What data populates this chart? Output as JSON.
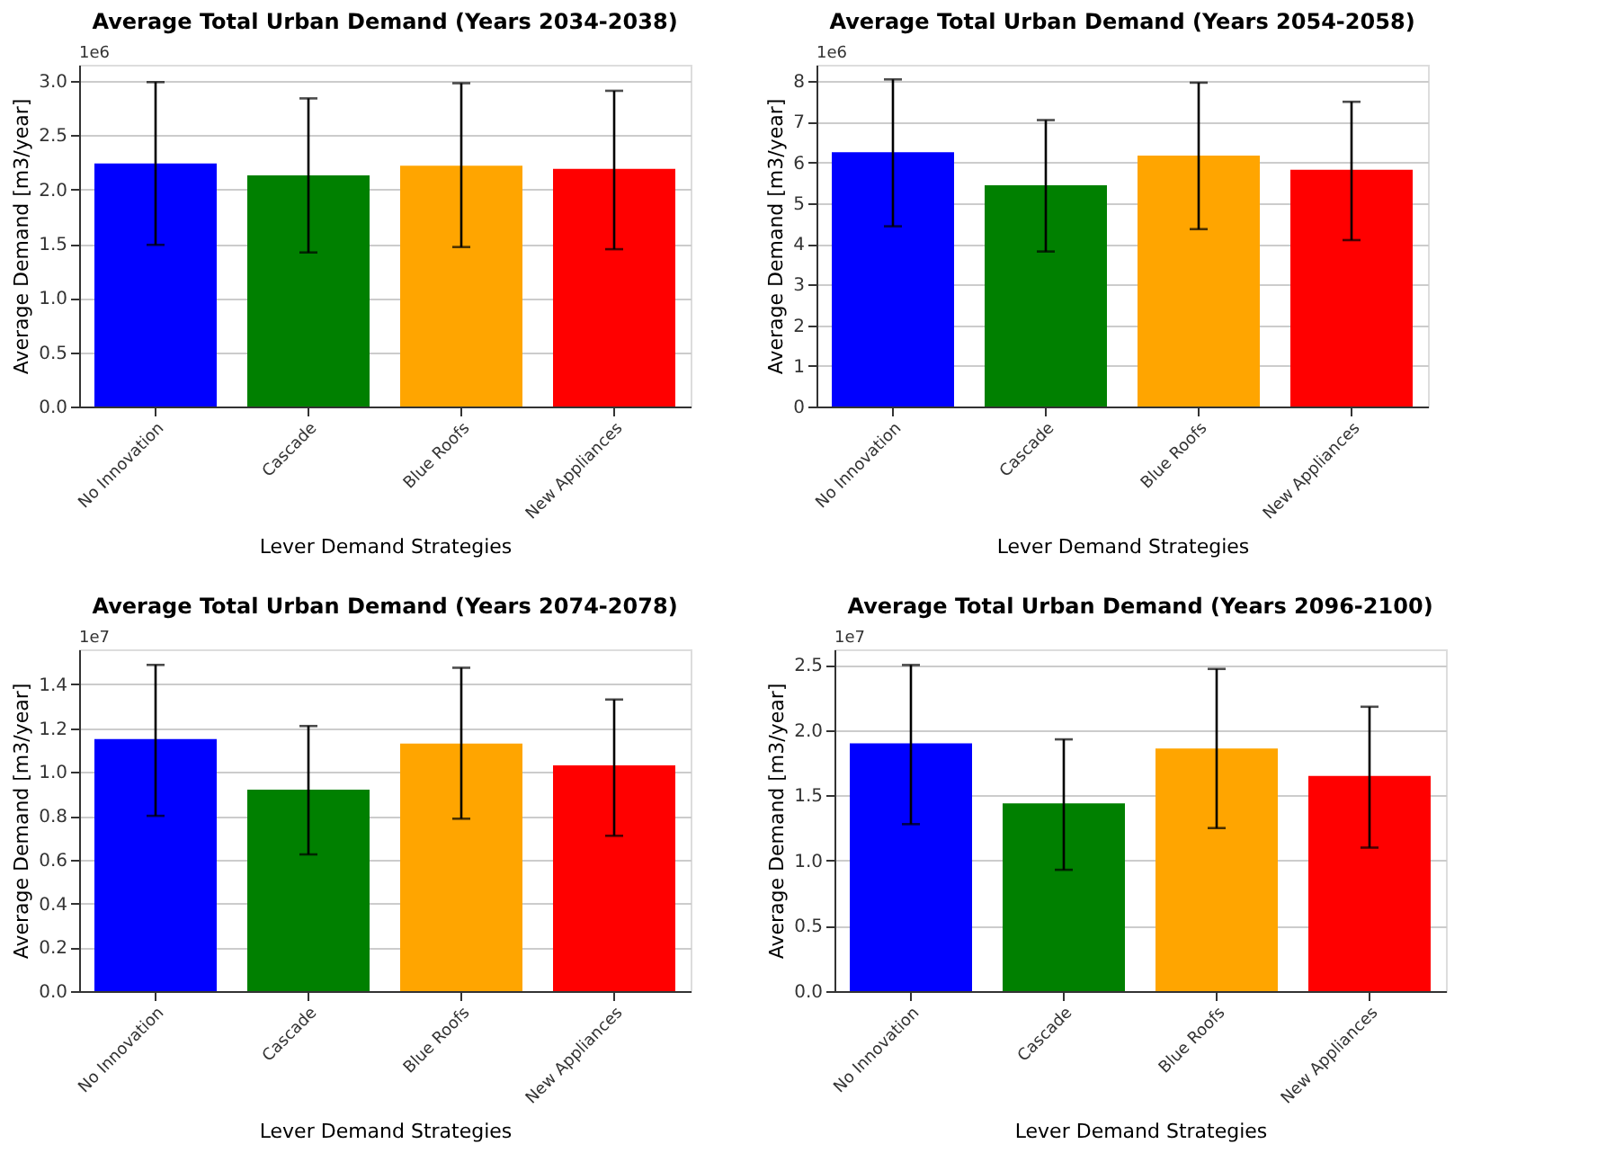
{
  "chart_data": [
    {
      "type": "bar",
      "title": "Average Total Urban Demand (Years 2034-2038)",
      "xlabel": "Lever Demand Strategies",
      "ylabel": "Average Demand [m3/year]",
      "annotations": [
        "1e6"
      ],
      "categories": [
        "No Innovation",
        "Cascade",
        "Blue Roofs",
        "New Appliances"
      ],
      "values": [
        2.24,
        2.13,
        2.22,
        2.19
      ],
      "colors": [
        "#0000ff",
        "#008000",
        "#ffa500",
        "#ff0000"
      ],
      "errors": [
        [
          1.49,
          2.99
        ],
        [
          1.42,
          2.84
        ],
        [
          1.47,
          2.98
        ],
        [
          1.45,
          2.91
        ]
      ],
      "ylim": [
        0,
        3.15
      ],
      "yticks": [
        {
          "value": 0,
          "label": "0.0"
        },
        0.5,
        {
          "value": 1,
          "label": "1.0"
        },
        1.5,
        {
          "value": 2,
          "label": "2.0"
        },
        2.5,
        {
          "value": 3,
          "label": "3.0"
        }
      ],
      "grid": "y"
    },
    {
      "type": "bar",
      "title": "Average Total Urban Demand (Years 2054-2058)",
      "xlabel": "Lever Demand Strategies",
      "ylabel": "Average Demand [m3/year]",
      "annotations": [
        "1e6"
      ],
      "categories": [
        "No Innovation",
        "Cascade",
        "Blue Roofs",
        "New Appliances"
      ],
      "values": [
        6.25,
        5.44,
        6.17,
        5.82
      ],
      "colors": [
        "#0000ff",
        "#008000",
        "#ffa500",
        "#ff0000"
      ],
      "errors": [
        [
          4.43,
          8.04
        ],
        [
          3.81,
          7.04
        ],
        [
          4.36,
          7.96
        ],
        [
          4.09,
          7.49
        ]
      ],
      "ylim": [
        0,
        8.4
      ],
      "yticks": [
        0,
        1,
        2,
        3,
        4,
        5,
        6,
        7,
        8
      ],
      "grid": "y"
    },
    {
      "type": "bar",
      "title": "Average Total Urban Demand (Years 2074-2078)",
      "xlabel": "Lever Demand Strategies",
      "ylabel": "Average Demand [m3/year]",
      "annotations": [
        "1e7"
      ],
      "categories": [
        "No Innovation",
        "Cascade",
        "Blue Roofs",
        "New Appliances"
      ],
      "values": [
        1.15,
        0.92,
        1.13,
        1.03
      ],
      "colors": [
        "#0000ff",
        "#008000",
        "#ffa500",
        "#ff0000"
      ],
      "errors": [
        [
          0.8,
          1.489
        ],
        [
          0.624,
          1.21
        ],
        [
          0.787,
          1.476
        ],
        [
          0.709,
          1.331
        ]
      ],
      "ylim": [
        0,
        1.56
      ],
      "yticks": [
        {
          "value": 0,
          "label": "0.0"
        },
        0.2,
        0.4,
        0.6,
        0.8,
        {
          "value": 1,
          "label": "1.0"
        },
        1.2,
        1.4
      ],
      "grid": "y"
    },
    {
      "type": "bar",
      "title": "Average Total Urban Demand (Years 2096-2100)",
      "xlabel": "Lever Demand Strategies",
      "ylabel": "Average Demand [m3/year]",
      "annotations": [
        "1e7"
      ],
      "categories": [
        "No Innovation",
        "Cascade",
        "Blue Roofs",
        "New Appliances"
      ],
      "values": [
        1.9,
        1.44,
        1.86,
        1.65
      ],
      "colors": [
        "#0000ff",
        "#008000",
        "#ffa500",
        "#ff0000"
      ],
      "errors": [
        [
          1.28,
          2.5
        ],
        [
          0.93,
          1.93
        ],
        [
          1.25,
          2.47
        ],
        [
          1.1,
          2.18
        ]
      ],
      "ylim": [
        0,
        2.62
      ],
      "yticks": [
        {
          "value": 0,
          "label": "0.0"
        },
        0.5,
        {
          "value": 1,
          "label": "1.0"
        },
        1.5,
        {
          "value": 2,
          "label": "2.0"
        },
        2.5
      ],
      "grid": "y"
    }
  ]
}
